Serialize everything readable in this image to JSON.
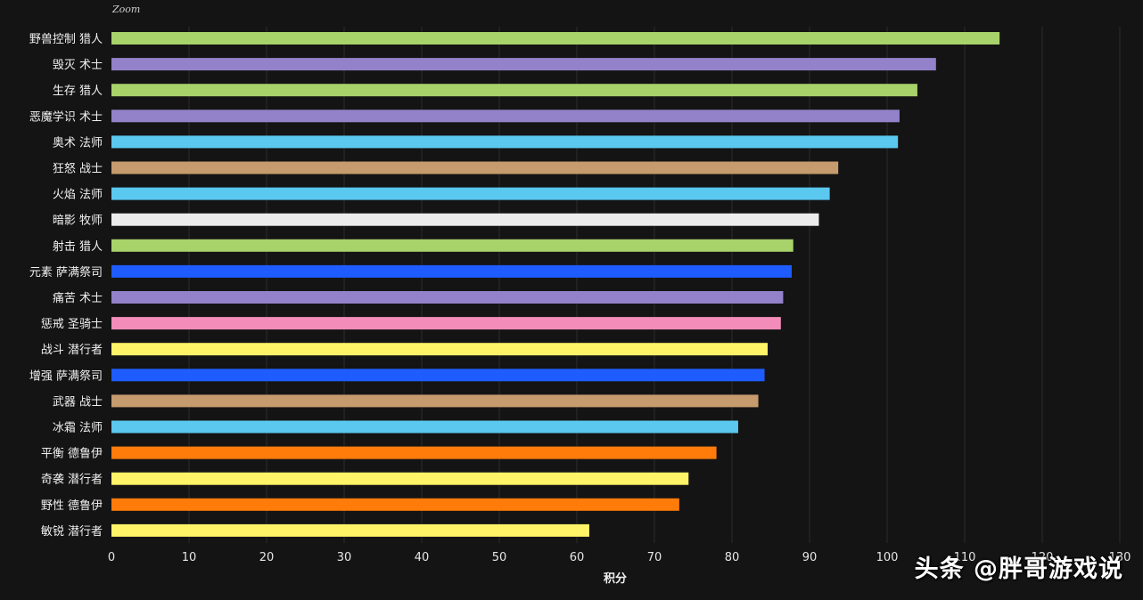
{
  "corner_label": "Zoom",
  "watermark": "头条 @胖哥游戏说",
  "chart_data": {
    "type": "bar",
    "orientation": "horizontal",
    "title": "",
    "xlabel": "积分",
    "ylabel": "",
    "xlim": [
      0,
      130
    ],
    "x_ticks": [
      0,
      10,
      20,
      30,
      40,
      50,
      60,
      70,
      80,
      90,
      100,
      110,
      120,
      130
    ],
    "grid": "vertical",
    "categories": [
      "野兽控制 猎人",
      "毁灭 术士",
      "生存 猎人",
      "恶魔学识 术士",
      "奥术 法师",
      "狂怒 战士",
      "火焰 法师",
      "暗影 牧师",
      "射击 猎人",
      "元素 萨满祭司",
      "痛苦 术士",
      "惩戒 圣骑士",
      "战斗 潜行者",
      "增强 萨满祭司",
      "武器 战士",
      "冰霜 法师",
      "平衡 德鲁伊",
      "奇袭 潜行者",
      "野性 德鲁伊",
      "敏锐 潜行者"
    ],
    "values": [
      114.5,
      106.3,
      103.9,
      101.6,
      101.4,
      93.7,
      92.6,
      91.2,
      87.9,
      87.7,
      86.6,
      86.3,
      84.6,
      84.2,
      83.4,
      80.8,
      78.0,
      74.4,
      73.2,
      61.6
    ],
    "colors": [
      "#a8d26a",
      "#9382c9",
      "#a8d26a",
      "#9382c9",
      "#5ac8ef",
      "#c69b6d",
      "#5ac8ef",
      "#ececec",
      "#a8d26a",
      "#1f5cff",
      "#9382c9",
      "#f48cba",
      "#fff468",
      "#1f5cff",
      "#c69b6d",
      "#5ac8ef",
      "#ff7c0a",
      "#fff468",
      "#ff7c0a",
      "#fff468"
    ]
  }
}
